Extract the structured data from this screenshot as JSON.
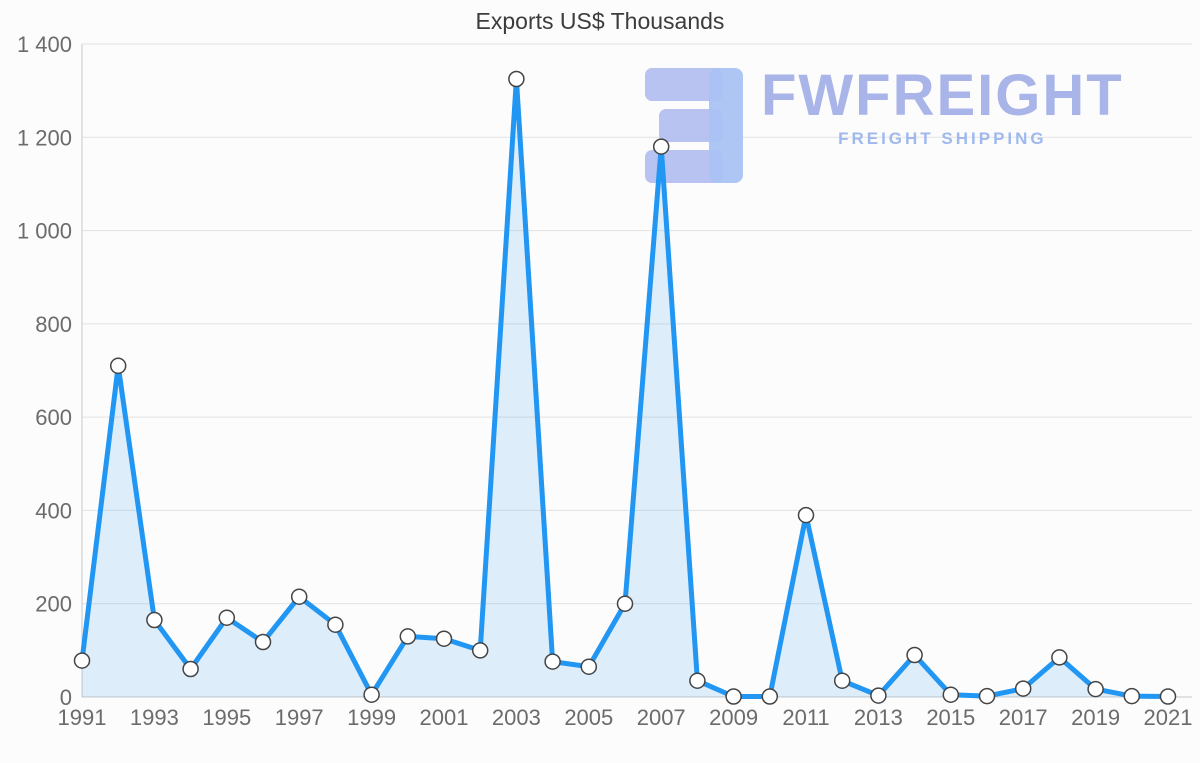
{
  "title": "Exports US$ Thousands",
  "watermark": {
    "brand": "FWFREIGHT",
    "tagline": "FREIGHT SHIPPING"
  },
  "colors": {
    "line": "#2196f3",
    "area_fill": "rgba(33,150,243,0.14)",
    "marker_fill": "#ffffff",
    "marker_stroke": "#444444",
    "grid": "#e2e2e2",
    "axis": "#c9c9c9",
    "tick_text": "#6b6b6b",
    "title_text": "#3c3c3c",
    "watermark_text": "#a9b4e9",
    "watermark_logo": "#aac3f3"
  },
  "chart_data": {
    "type": "area",
    "title": "Exports US$ Thousands",
    "xlabel": "",
    "ylabel": "",
    "x": [
      1991,
      1992,
      1993,
      1994,
      1995,
      1996,
      1997,
      1998,
      1999,
      2000,
      2001,
      2002,
      2003,
      2004,
      2005,
      2006,
      2007,
      2008,
      2009,
      2010,
      2011,
      2012,
      2013,
      2014,
      2015,
      2016,
      2017,
      2018,
      2019,
      2020,
      2021
    ],
    "values": [
      78,
      710,
      165,
      60,
      170,
      118,
      215,
      155,
      5,
      130,
      125,
      100,
      1325,
      76,
      65,
      200,
      1180,
      35,
      1,
      1,
      390,
      35,
      3,
      90,
      5,
      2,
      18,
      85,
      17,
      2,
      1
    ],
    "xlim": [
      1991,
      2021
    ],
    "ylim": [
      0,
      1400
    ],
    "ytick_values": [
      0,
      200,
      400,
      600,
      800,
      1000,
      1200,
      1400
    ],
    "ytick_labels": [
      "0",
      "200",
      "400",
      "600",
      "800",
      "1 000",
      "1 200",
      "1 400"
    ],
    "xtick_labels": [
      "1991",
      "1993",
      "1995",
      "1997",
      "1999",
      "2001",
      "2003",
      "2005",
      "2007",
      "2009",
      "2011",
      "2013",
      "2015",
      "2017",
      "2019",
      "2021"
    ],
    "grid": true,
    "legend": "none",
    "markers": true
  }
}
